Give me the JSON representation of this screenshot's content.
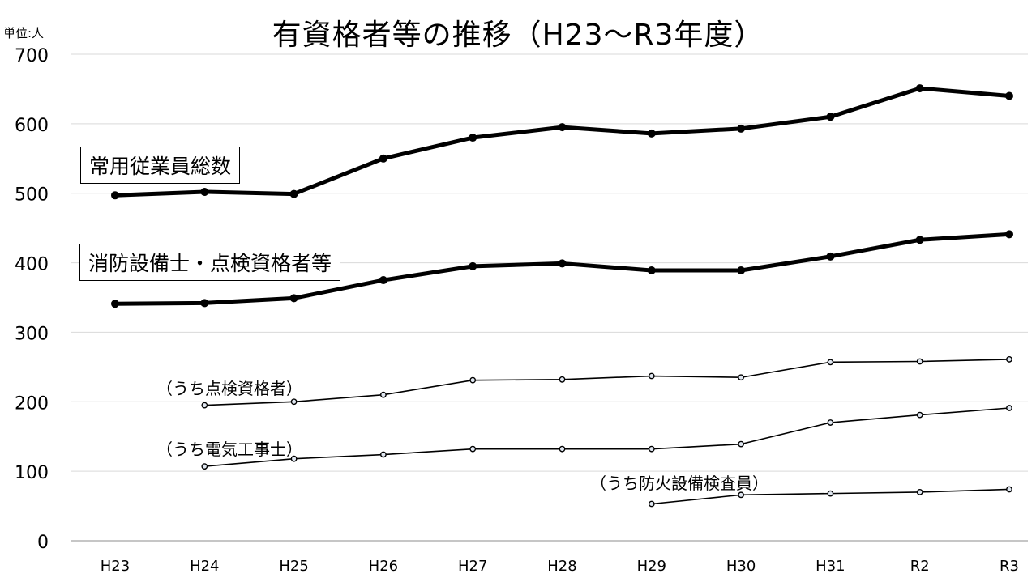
{
  "chart_data": {
    "type": "line",
    "title": "有資格者等の推移（H23～R3年度）",
    "unit_label": "単位:人",
    "x": [
      "H23",
      "H24",
      "H25",
      "H26",
      "H27",
      "H28",
      "H29",
      "H30",
      "H31",
      "R2",
      "R3"
    ],
    "ylim": [
      0,
      700
    ],
    "yticks": [
      0,
      100,
      200,
      300,
      400,
      500,
      600,
      700
    ],
    "grid": true,
    "series": [
      {
        "name": "常用従業員総数",
        "style": "bold",
        "values": [
          497,
          502,
          499,
          550,
          580,
          595,
          586,
          593,
          610,
          651,
          640
        ]
      },
      {
        "name": "消防設備士・点検資格者等",
        "style": "bold",
        "values": [
          341,
          342,
          349,
          375,
          395,
          399,
          389,
          389,
          409,
          433,
          441
        ]
      },
      {
        "name": "（うち点検資格者）",
        "style": "thin",
        "values": [
          null,
          195,
          200,
          210,
          231,
          232,
          237,
          235,
          257,
          258,
          261
        ]
      },
      {
        "name": "（うち電気工事士）",
        "style": "thin",
        "values": [
          null,
          107,
          118,
          124,
          132,
          132,
          132,
          139,
          170,
          181,
          191
        ]
      },
      {
        "name": "（うち防火設備検査員）",
        "style": "thin",
        "values": [
          null,
          null,
          null,
          null,
          null,
          null,
          53,
          66,
          68,
          70,
          74
        ]
      }
    ],
    "line_color": "#000000",
    "grid_color": "#d9d9d9"
  }
}
